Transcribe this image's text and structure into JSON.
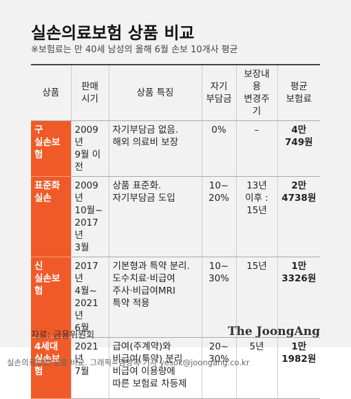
{
  "header": {
    "title": "실손의료보험 상품 비교",
    "subtitle": "※보험료는 만 40세 남성의 올해 6월 손보 10개사 평균"
  },
  "table": {
    "columns": [
      [
        "상품"
      ],
      [
        "판매",
        "시기"
      ],
      [
        "상품 특징"
      ],
      [
        "자기",
        "부담금"
      ],
      [
        "보장내용",
        "변경주기"
      ],
      [
        "평균",
        "보험료"
      ]
    ],
    "rows": [
      [
        [
          "구",
          "실손보험"
        ],
        [
          "2009년",
          "9월 이전"
        ],
        [
          "자기부담금 없음.",
          "해외 의료비 보장"
        ],
        [
          "0%"
        ],
        [
          "–"
        ],
        [
          "4만",
          "749원"
        ]
      ],
      [
        [
          "표준화",
          "실손"
        ],
        [
          "2009년",
          "10월~",
          "2017년",
          "3월"
        ],
        [
          "상품 표준화.",
          "자기부담금 도입"
        ],
        [
          "10~",
          "20%"
        ],
        [
          "13년",
          "이후 :",
          "15년"
        ],
        [
          "2만",
          "4738원"
        ]
      ],
      [
        [
          "신",
          "실손보험"
        ],
        [
          "2017년",
          "4월~",
          "2021년",
          "6월"
        ],
        [
          "기본형과 특약 분리.",
          "도수치료·비급여",
          "주사·비급여MRI",
          "특약 적용"
        ],
        [
          "10~",
          "30%"
        ],
        [
          "15년"
        ],
        [
          "1만",
          "3326원"
        ]
      ],
      [
        [
          "4세대",
          "실손보험"
        ],
        [
          "2021년",
          "7월"
        ],
        [
          "급여(주계약)와",
          "비급여(특약) 분리.",
          "비급여 이용량에",
          "따른 보험료 차등제"
        ],
        [
          "20~",
          "30%"
        ],
        [
          "5년"
        ],
        [
          "1만",
          "1982원"
        ]
      ]
    ]
  },
  "footer": {
    "source": "자료: 금융위원회",
    "brand": "The JoongAng",
    "credit": "실손의료보험 상품 비교. 그래픽=김영옥 기자 yesok@joongang.co.kr"
  }
}
